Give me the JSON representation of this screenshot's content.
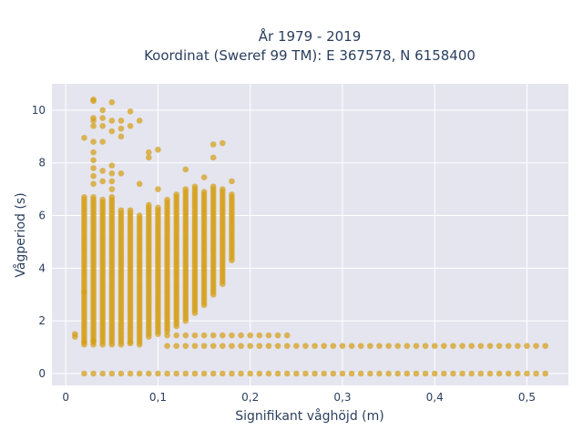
{
  "chart_data": {
    "type": "scatter",
    "title": [
      "År 1979 - 2019",
      "Koordinat (Sweref 99 TM): E 367578, N 6158400"
    ],
    "xlabel": "Signifikant våghöjd (m)",
    "ylabel": "Vågperiod (s)",
    "xlim": [
      -0.015,
      0.545
    ],
    "ylim": [
      -0.45,
      11.0
    ],
    "xticks": [
      0,
      0.1,
      0.2,
      0.3,
      0.4,
      0.5
    ],
    "xtick_labels": [
      "0",
      "0,1",
      "0,2",
      "0,3",
      "0,4",
      "0,5"
    ],
    "yticks": [
      0,
      2,
      4,
      6,
      8,
      10
    ],
    "ytick_labels": [
      "0",
      "2",
      "4",
      "6",
      "8",
      "10"
    ],
    "grid": true,
    "colors": {
      "marker": "#d4a017",
      "plot_bg": "#e5e5f0",
      "grid": "#ffffff",
      "text": "#2a3f5f"
    },
    "bands": [
      {
        "x": 0.02,
        "ymin": 1.1,
        "ymax": 6.7,
        "extra": [
          8.95,
          3.1
        ]
      },
      {
        "x": 0.03,
        "ymin": 1.1,
        "ymax": 6.7,
        "extra": [
          10.4,
          10.35,
          9.7,
          9.6,
          9.4,
          8.8,
          8.4,
          8.1,
          7.8,
          7.5,
          7.2
        ]
      },
      {
        "x": 0.04,
        "ymin": 1.1,
        "ymax": 6.6,
        "extra": [
          10.0,
          9.7,
          9.4,
          8.8,
          7.7,
          7.3
        ]
      },
      {
        "x": 0.05,
        "ymin": 1.1,
        "ymax": 6.7,
        "extra": [
          10.3,
          9.6,
          9.2,
          7.9,
          7.6,
          7.3,
          7.0
        ]
      },
      {
        "x": 0.06,
        "ymin": 1.1,
        "ymax": 6.2,
        "extra": [
          9.6,
          9.3,
          9.0,
          7.6
        ]
      },
      {
        "x": 0.07,
        "ymin": 1.2,
        "ymax": 6.2,
        "extra": [
          9.95,
          9.4
        ]
      },
      {
        "x": 0.08,
        "ymin": 1.1,
        "ymax": 6.0,
        "extra": [
          9.6,
          7.2
        ]
      },
      {
        "x": 0.09,
        "ymin": 1.4,
        "ymax": 6.4,
        "extra": [
          8.4,
          8.2
        ]
      },
      {
        "x": 0.1,
        "ymin": 1.5,
        "ymax": 6.3,
        "extra": [
          8.5,
          7.0
        ]
      },
      {
        "x": 0.11,
        "ymin": 1.6,
        "ymax": 6.6,
        "extra": []
      },
      {
        "x": 0.12,
        "ymin": 1.8,
        "ymax": 6.8,
        "extra": []
      },
      {
        "x": 0.13,
        "ymin": 2.0,
        "ymax": 7.0,
        "extra": [
          7.75
        ]
      },
      {
        "x": 0.14,
        "ymin": 2.3,
        "ymax": 7.1,
        "extra": []
      },
      {
        "x": 0.15,
        "ymin": 2.6,
        "ymax": 6.9,
        "extra": [
          7.45
        ]
      },
      {
        "x": 0.16,
        "ymin": 3.0,
        "ymax": 7.1,
        "extra": [
          8.7,
          8.2
        ]
      },
      {
        "x": 0.17,
        "ymin": 3.4,
        "ymax": 6.9,
        "extra": [
          8.75,
          7.0
        ]
      },
      {
        "x": 0.18,
        "ymin": 4.3,
        "ymax": 6.8,
        "extra": [
          7.3
        ]
      }
    ],
    "scattered_points": [
      [
        0.01,
        1.5
      ],
      [
        0.01,
        1.4
      ],
      [
        0.02,
        1.2
      ],
      [
        0.03,
        1.25
      ],
      [
        0.07,
        1.15
      ]
    ],
    "row_y_1_4": {
      "y": 1.45,
      "x_from": 0.11,
      "x_to": 0.24,
      "step": 0.01
    },
    "row_y_1_05": {
      "y": 1.05,
      "x_from": 0.11,
      "x_to": 0.52,
      "step": 0.01
    },
    "row_y_0": {
      "y": 0.0,
      "x_from": 0.02,
      "x_to": 0.52,
      "step": 0.01
    }
  }
}
